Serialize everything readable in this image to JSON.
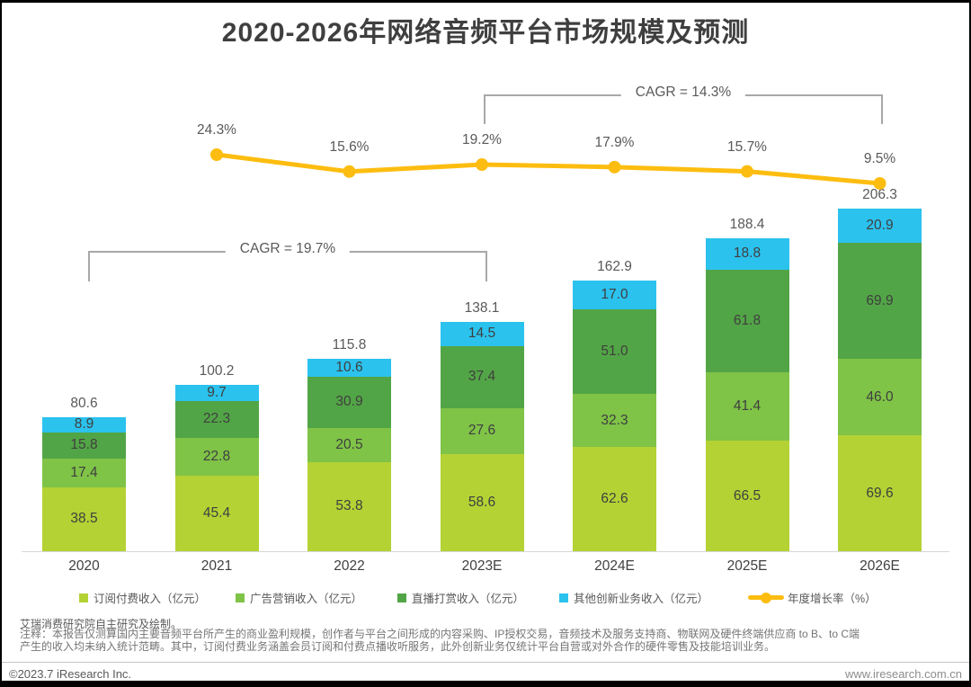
{
  "title": "2020-2026年网络音频平台市场规模及预测",
  "chart_data": {
    "type": "stacked-bar-line",
    "unit": "亿元",
    "categories": [
      "2020",
      "2021",
      "2022",
      "2023E",
      "2024E",
      "2025E",
      "2026E"
    ],
    "series": [
      {
        "name": "订阅付费收入（亿元）",
        "color": "#b4d234",
        "values": [
          38.5,
          45.4,
          53.8,
          58.6,
          62.6,
          66.5,
          69.6
        ]
      },
      {
        "name": "广告营销收入（亿元）",
        "color": "#7fc347",
        "values": [
          17.4,
          22.8,
          20.5,
          27.6,
          32.3,
          41.4,
          46.0
        ]
      },
      {
        "name": "直播打赏收入（亿元）",
        "color": "#52a546",
        "values": [
          15.8,
          22.3,
          30.9,
          37.4,
          51.0,
          61.8,
          69.9
        ]
      },
      {
        "name": "其他创新业务收入（亿元）",
        "color": "#2bc2ee",
        "values": [
          8.9,
          9.7,
          10.6,
          14.5,
          17.0,
          18.8,
          20.9
        ]
      }
    ],
    "totals": [
      80.6,
      100.2,
      115.8,
      138.1,
      162.9,
      188.4,
      206.3
    ],
    "growth_line": {
      "name": "年度增长率（%）",
      "color": "#fdbd10",
      "categories": [
        "2021",
        "2022",
        "2023E",
        "2024E",
        "2025E",
        "2026E"
      ],
      "values": [
        24.3,
        15.6,
        19.2,
        17.9,
        15.7,
        9.5
      ]
    },
    "annotations": [
      {
        "label": "CAGR = 19.7%",
        "span": [
          "2020",
          "2023E"
        ]
      },
      {
        "label": "CAGR = 14.3%",
        "span": [
          "2023E",
          "2026E"
        ]
      }
    ],
    "legend_position": "bottom",
    "grid": false
  },
  "footer": {
    "source": "艾瑞消费研究院自主研究及绘制。",
    "note_lines": [
      "注释：本报告仅测算国内主要音频平台所产生的商业盈利规模，创作者与平台之间形成的内容采购、IP授权交易，音频技术及服务支持商、物联网及硬件终端供应商 to B、to C端",
      "产生的收入均未纳入统计范畴。其中，订阅付费业务涵盖会员订阅和付费点播收听服务，此外创新业务仅统计平台自营或对外合作的硬件零售及技能培训业务。"
    ],
    "copyright": "©2023.7 iResearch Inc.",
    "website": "www.iresearch.com.cn"
  }
}
